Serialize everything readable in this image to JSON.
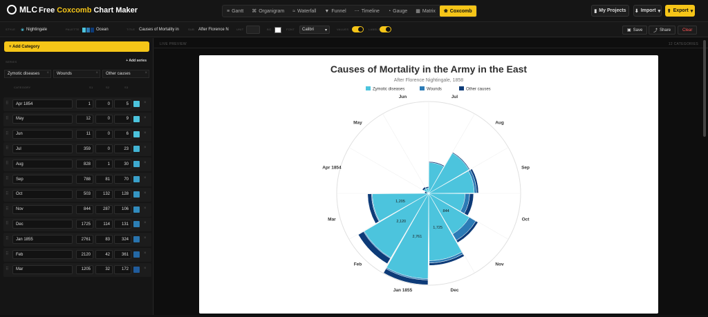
{
  "header": {
    "logo_text": "MLC",
    "app_name_pre": "Free ",
    "app_name_hl": "Coxcomb",
    "app_name_post": " Chart Maker",
    "tabs": [
      {
        "label": "Gantt",
        "icon": "≡"
      },
      {
        "label": "Organigram",
        "icon": "⌘"
      },
      {
        "label": "Waterfall",
        "icon": "≈"
      },
      {
        "label": "Funnel",
        "icon": "▼"
      },
      {
        "label": "Timeline",
        "icon": "⋯"
      },
      {
        "label": "Gauge",
        "icon": "◔"
      },
      {
        "label": "Matrix",
        "icon": "▦"
      },
      {
        "label": "Coxcomb",
        "icon": "❀",
        "active": true
      }
    ],
    "my_projects": "My Projects",
    "import": "Import",
    "export": "Export"
  },
  "toolbar": {
    "style_label": "STYLE",
    "style_value": "Nightingale",
    "palette_label": "PALETTE",
    "palette_value": "Ocean",
    "title_label": "TITLE",
    "title_value": "Causes of Mortality in",
    "sub_label": "SUB",
    "sub_value": "After Florence N",
    "unit_label": "UNIT",
    "unit_value": "",
    "bg_label": "BG",
    "font_label": "FONT",
    "font_value": "Calibri",
    "values_label": "VALUES",
    "labels_label": "LABELS",
    "save": "Save",
    "share": "Share",
    "clear": "Clear",
    "palette_colors": [
      "#4cc4dd",
      "#2c7bb6",
      "#0d3b78"
    ]
  },
  "left": {
    "add_category": "+ Add Category",
    "series_label": "SERIES",
    "add_series": "+ Add series",
    "series": [
      "Zymotic diseases",
      "Wounds",
      "Other causes"
    ],
    "col_category": "CATEGORY",
    "col_s1": "S1",
    "col_s2": "S2",
    "col_s3": "S3",
    "rows": [
      {
        "name": "Apr 1854",
        "s1": "1",
        "s2": "0",
        "s3": "5",
        "color": "#4cc4dd"
      },
      {
        "name": "May",
        "s1": "12",
        "s2": "0",
        "s3": "9",
        "color": "#4cc4dd"
      },
      {
        "name": "Jun",
        "s1": "11",
        "s2": "0",
        "s3": "6",
        "color": "#4cc4dd"
      },
      {
        "name": "Jul",
        "s1": "359",
        "s2": "0",
        "s3": "23",
        "color": "#42b4d4"
      },
      {
        "name": "Aug",
        "s1": "828",
        "s2": "1",
        "s3": "30",
        "color": "#3eaad0"
      },
      {
        "name": "Sep",
        "s1": "788",
        "s2": "81",
        "s3": "70",
        "color": "#3aa0ca"
      },
      {
        "name": "Oct",
        "s1": "503",
        "s2": "132",
        "s3": "128",
        "color": "#3596c4"
      },
      {
        "name": "Nov",
        "s1": "844",
        "s2": "287",
        "s3": "106",
        "color": "#318bbd"
      },
      {
        "name": "Dec",
        "s1": "1725",
        "s2": "114",
        "s3": "131",
        "color": "#2c7fb6"
      },
      {
        "name": "Jan 1855",
        "s1": "2761",
        "s2": "83",
        "s3": "324",
        "color": "#2874ae"
      },
      {
        "name": "Feb",
        "s1": "2120",
        "s2": "42",
        "s3": "361",
        "color": "#2468a5"
      },
      {
        "name": "Mar",
        "s1": "1205",
        "s2": "32",
        "s3": "172",
        "color": "#205c9c"
      }
    ]
  },
  "main": {
    "live_preview": "LIVE PREVIEW",
    "count": "12 CATEGORIES"
  },
  "chart_data": {
    "type": "coxcomb",
    "title": "Causes of Mortality in the Army in the East",
    "subtitle": "After Florence Nightingale, 1858",
    "categories": [
      "Jul",
      "Aug",
      "Sep",
      "Oct",
      "Nov",
      "Dec",
      "Jan 1855",
      "Feb",
      "Mar",
      "Apr 1854",
      "May",
      "Jun"
    ],
    "series": [
      {
        "name": "Zymotic diseases",
        "color": "#4cc4dd",
        "values": [
          359,
          828,
          788,
          503,
          844,
          1725,
          2761,
          2120,
          1205,
          1,
          12,
          11
        ]
      },
      {
        "name": "Wounds",
        "color": "#2c7bb6",
        "values": [
          0,
          1,
          81,
          132,
          287,
          114,
          83,
          42,
          32,
          0,
          0,
          0
        ]
      },
      {
        "name": "Other causes",
        "color": "#0d3b78",
        "values": [
          23,
          30,
          70,
          128,
          106,
          131,
          324,
          361,
          172,
          5,
          9,
          6
        ]
      }
    ],
    "value_labels": [
      {
        "category": "Nov",
        "text": "844"
      },
      {
        "category": "Dec",
        "text": "1,725"
      },
      {
        "category": "Jan 1855",
        "text": "2,761"
      },
      {
        "category": "Feb",
        "text": "2,120"
      },
      {
        "category": "Mar",
        "text": "1,205"
      }
    ],
    "legend": "top-center",
    "max_value": 3200
  }
}
